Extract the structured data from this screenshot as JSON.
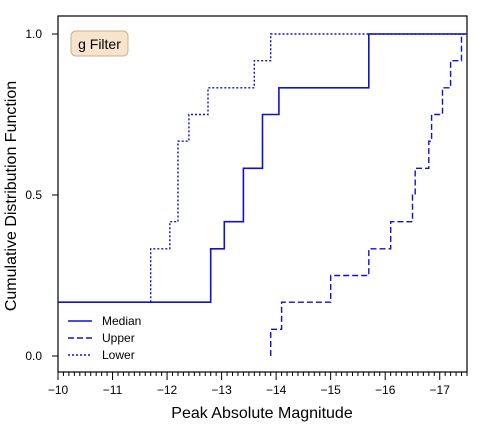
{
  "chart_data": {
    "type": "line",
    "step": true,
    "xlabel": "Peak Absolute Magnitude",
    "ylabel": "Cumulative Distribution Function",
    "xlim": [
      -10,
      -17.5
    ],
    "ylim": [
      0,
      1
    ],
    "x_axis_inverted": true,
    "x_ticks": [
      -10,
      -11,
      -12,
      -13,
      -14,
      -15,
      -16,
      -17
    ],
    "x_tick_labels": [
      "−10",
      "−11",
      "−12",
      "−13",
      "−14",
      "−15",
      "−16",
      "−17"
    ],
    "y_ticks": [
      0,
      0.5,
      1
    ],
    "y_tick_labels": [
      "0.0",
      "0.5",
      "1.0"
    ],
    "annotation": "g Filter",
    "legend_position": "lower-left",
    "line_color": "#1010d0",
    "series": [
      {
        "name": "Median",
        "style": "solid",
        "x": [
          -10,
          -12.8,
          -12.8,
          -13.05,
          -13.05,
          -13.4,
          -13.4,
          -13.75,
          -13.75,
          -14.05,
          -14.05,
          -15.7,
          -15.7,
          -17.5
        ],
        "y": [
          0.167,
          0.167,
          0.333,
          0.333,
          0.417,
          0.417,
          0.583,
          0.583,
          0.75,
          0.75,
          0.833,
          0.833,
          1.0,
          1.0
        ]
      },
      {
        "name": "Upper",
        "style": "dashed",
        "x": [
          -13.9,
          -13.9,
          -14.0,
          -14.0,
          -14.1,
          -14.1,
          -15.0,
          -15.0,
          -15.7,
          -15.7,
          -16.1,
          -16.1,
          -16.5,
          -16.5,
          -16.55,
          -16.55,
          -16.65,
          -16.65,
          -16.8,
          -16.8,
          -16.85,
          -16.85,
          -17.0,
          -17.0,
          -17.05,
          -17.05,
          -17.2,
          -17.2,
          -17.3,
          -17.3,
          -17.4,
          -17.4
        ],
        "y": [
          0.0,
          0.083,
          0.083,
          0.083,
          0.083,
          0.167,
          0.167,
          0.25,
          0.25,
          0.333,
          0.333,
          0.417,
          0.417,
          0.5,
          0.5,
          0.583,
          0.583,
          0.583,
          0.583,
          0.667,
          0.667,
          0.75,
          0.75,
          0.75,
          0.75,
          0.833,
          0.833,
          0.917,
          0.917,
          0.917,
          0.917,
          1.0
        ]
      },
      {
        "name": "Lower",
        "style": "dotted",
        "x": [
          -11.7,
          -11.7,
          -12.05,
          -12.05,
          -12.2,
          -12.2,
          -12.4,
          -12.4,
          -12.55,
          -12.55,
          -12.75,
          -12.75,
          -13.6,
          -13.6,
          -13.9,
          -13.9,
          -17.5
        ],
        "y": [
          0.167,
          0.333,
          0.333,
          0.417,
          0.417,
          0.667,
          0.667,
          0.75,
          0.75,
          0.75,
          0.75,
          0.833,
          0.833,
          0.917,
          0.917,
          1.0,
          1.0
        ]
      }
    ]
  }
}
